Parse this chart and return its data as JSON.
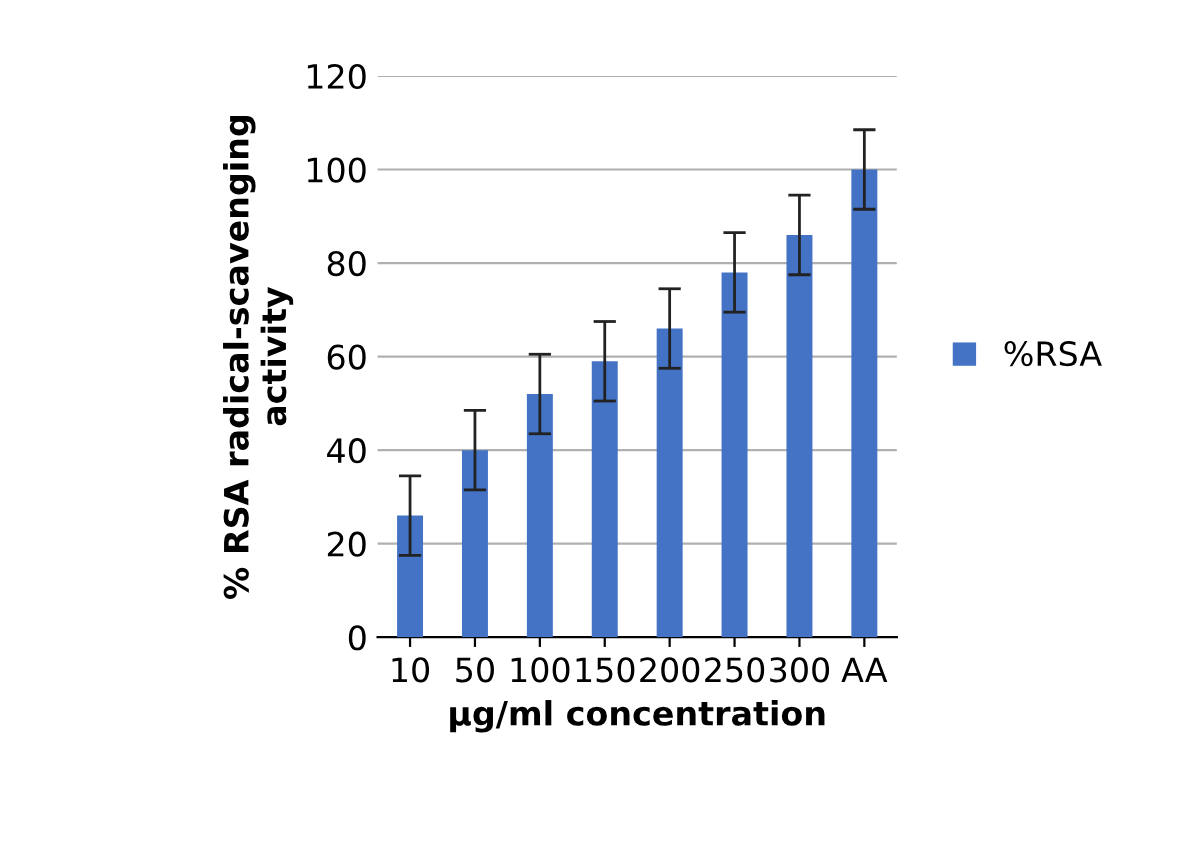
{
  "chart_data": {
    "type": "bar",
    "xlabel": "μg/ml concentration",
    "ylabel": "% RSA radical-scavenging\nactivity",
    "categories": [
      "10",
      "50",
      "100",
      "150",
      "200",
      "250",
      "300",
      "AA"
    ],
    "series": [
      {
        "name": "%RSA",
        "color": "#4472c4",
        "values": [
          26,
          40,
          52,
          59,
          66,
          78,
          86,
          100
        ],
        "errors": [
          8.5,
          8.5,
          8.5,
          8.5,
          8.5,
          8.5,
          8.5,
          8.5
        ]
      }
    ],
    "ylim": [
      0,
      120
    ],
    "yticks": [
      0,
      20,
      40,
      60,
      80,
      100,
      120
    ],
    "grid": "y",
    "legend": "right"
  }
}
